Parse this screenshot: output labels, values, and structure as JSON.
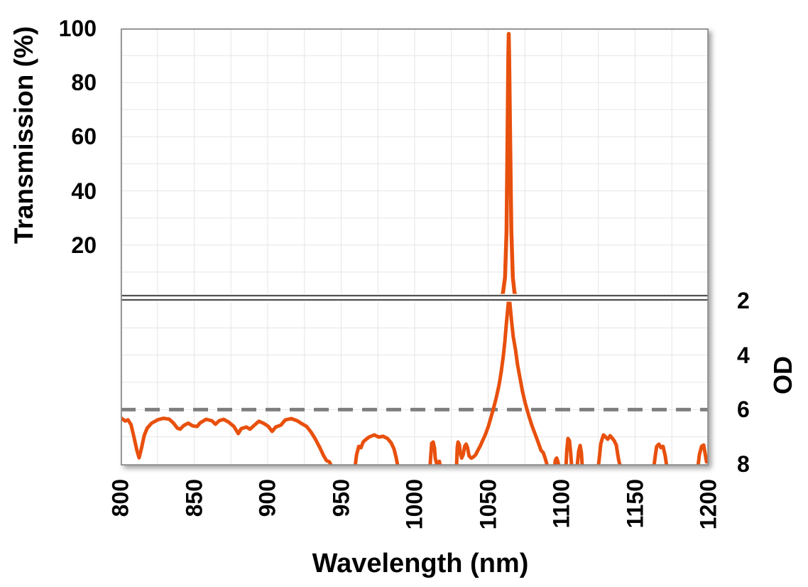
{
  "figure": {
    "kind": "laser-line filter spectrum, stacked transmission / optical-density panels with axis break",
    "background_color": "#FFFFFF",
    "colors": {
      "series_orange": "#E8500D",
      "reference_dash_gray": "#7F7F7F",
      "gridline": "#E5E5E5",
      "plot_border": "#8C8C8C",
      "axis_break_line": "#515151",
      "text": "#000000"
    },
    "axis_break": {
      "between": "Transmission 0% and OD 2",
      "style": "double-line"
    }
  },
  "chart_data": {
    "type": "line",
    "title": "",
    "xlabel": "Wavelength (nm)",
    "x_range": [
      800,
      1200
    ],
    "x_ticks": [
      800,
      850,
      900,
      950,
      1000,
      1050,
      1100,
      1150,
      1200
    ],
    "x_minor_gridline_step_nm": 25,
    "legend": "none",
    "panels": [
      {
        "name": "transmission",
        "ylabel": "Transmission (%)",
        "y_range": [
          0,
          100
        ],
        "y_ticks": [
          20,
          40,
          60,
          80,
          100
        ],
        "y_gridline_step": 10,
        "annotations": {
          "peak_wavelength_nm": 1064,
          "peak_transmission_pct": 98
        },
        "series": [
          {
            "name": "transmission-peak",
            "color": "#E8500D",
            "points": [
              [
                1056,
                0
              ],
              [
                1060,
                2
              ],
              [
                1061.5,
                8
              ],
              [
                1062.5,
                25
              ],
              [
                1063.2,
                60
              ],
              [
                1063.7,
                90
              ],
              [
                1064,
                98
              ],
              [
                1064.3,
                90
              ],
              [
                1065,
                60
              ],
              [
                1065.8,
                25
              ],
              [
                1066.8,
                8
              ],
              [
                1068,
                2
              ],
              [
                1072,
                0
              ]
            ]
          }
        ]
      },
      {
        "name": "optical-density",
        "ylabel": "OD",
        "y_range_top_to_bottom": [
          2,
          8
        ],
        "y_ticks": [
          2,
          4,
          6,
          8
        ],
        "y_gridline_step": 1,
        "reference_line": {
          "od": 6,
          "style": "dashed",
          "color": "#7F7F7F",
          "x_span": [
            800,
            1200
          ]
        },
        "series": [
          {
            "name": "od-blocking",
            "color": "#E8500D",
            "segments": [
              [
                [
                  800,
                  6.3
                ],
                [
                  803,
                  6.42
                ],
                [
                  805,
                  6.38
                ],
                [
                  807,
                  6.55
                ],
                [
                  809,
                  7.0
                ],
                [
                  811,
                  7.5
                ],
                [
                  812.5,
                  7.77
                ],
                [
                  814,
                  7.45
                ],
                [
                  816,
                  6.95
                ],
                [
                  818,
                  6.68
                ],
                [
                  821,
                  6.5
                ],
                [
                  825,
                  6.38
                ],
                [
                  829,
                  6.32
                ],
                [
                  833,
                  6.35
                ],
                [
                  836,
                  6.5
                ],
                [
                  838.5,
                  6.68
                ],
                [
                  840.5,
                  6.72
                ],
                [
                  843,
                  6.58
                ],
                [
                  846,
                  6.5
                ],
                [
                  849,
                  6.6
                ],
                [
                  852,
                  6.62
                ],
                [
                  854,
                  6.49
                ],
                [
                  858,
                  6.36
                ],
                [
                  862,
                  6.41
                ],
                [
                  864.5,
                  6.54
                ],
                [
                  867,
                  6.41
                ],
                [
                  870,
                  6.36
                ],
                [
                  873.5,
                  6.46
                ],
                [
                  877,
                  6.62
                ],
                [
                  880,
                  6.88
                ],
                [
                  882,
                  6.7
                ],
                [
                  885.5,
                  6.64
                ],
                [
                  888,
                  6.72
                ],
                [
                  891,
                  6.57
                ],
                [
                  894,
                  6.43
                ],
                [
                  897.5,
                  6.51
                ],
                [
                  900.5,
                  6.62
                ],
                [
                  903,
                  6.8
                ],
                [
                  905.5,
                  6.64
                ],
                [
                  909,
                  6.57
                ],
                [
                  912,
                  6.38
                ],
                [
                  916,
                  6.33
                ],
                [
                  920,
                  6.41
                ],
                [
                  923,
                  6.51
                ],
                [
                  926.5,
                  6.62
                ],
                [
                  929.5,
                  6.83
                ],
                [
                  932.5,
                  7.09
                ],
                [
                  935.5,
                  7.4
                ],
                [
                  938,
                  7.69
                ],
                [
                  940,
                  7.87
                ],
                [
                  942,
                  7.92
                ],
                [
                  943.5,
                  8.08
                ]
              ],
              [
                [
                  959.5,
                  8.08
                ],
                [
                  960.5,
                  7.66
                ],
                [
                  962,
                  7.35
                ],
                [
                  963.5,
                  7.4
                ],
                [
                  965,
                  7.19
                ],
                [
                  967,
                  7.09
                ],
                [
                  969,
                  7.01
                ],
                [
                  972.5,
                  6.93
                ],
                [
                  975.5,
                  7.01
                ],
                [
                  978.5,
                  6.98
                ],
                [
                  981.5,
                  7.06
                ],
                [
                  984,
                  7.22
                ],
                [
                  986,
                  7.45
                ],
                [
                  987.5,
                  7.78
                ],
                [
                  988.5,
                  8.08
                ]
              ],
              [
                [
                  1010.5,
                  8.08
                ],
                [
                  1011,
                  7.66
                ],
                [
                  1011.6,
                  7.24
                ],
                [
                  1012.6,
                  7.19
                ],
                [
                  1013.5,
                  7.4
                ],
                [
                  1014,
                  7.78
                ],
                [
                  1014.8,
                  7.95
                ],
                [
                  1015.5,
                  8.08
                ]
              ],
              [
                [
                  1016.2,
                  8.08
                ],
                [
                  1016.8,
                  7.9
                ],
                [
                  1017.4,
                  8.08
                ]
              ],
              [
                [
                  1028.5,
                  8.08
                ],
                [
                  1029,
                  7.4
                ],
                [
                  1029.5,
                  7.19
                ],
                [
                  1030.5,
                  7.3
                ],
                [
                  1031,
                  7.6
                ],
                [
                  1032,
                  7.78
                ],
                [
                  1033,
                  7.66
                ],
                [
                  1034,
                  7.35
                ],
                [
                  1035,
                  7.27
                ],
                [
                  1036,
                  7.4
                ],
                [
                  1037,
                  7.7
                ],
                [
                  1038.5,
                  7.78
                ],
                [
                  1040,
                  7.74
                ],
                [
                  1041.5,
                  7.66
                ],
                [
                  1043,
                  7.5
                ],
                [
                  1044.5,
                  7.35
                ],
                [
                  1046,
                  7.17
                ],
                [
                  1048,
                  6.93
                ],
                [
                  1050,
                  6.64
                ],
                [
                  1051.7,
                  6.33
                ],
                [
                  1053.5,
                  5.99
                ],
                [
                  1055.5,
                  5.57
                ],
                [
                  1057.5,
                  5.08
                ],
                [
                  1059,
                  4.58
                ],
                [
                  1060.4,
                  4.0
                ],
                [
                  1061.4,
                  3.49
                ],
                [
                  1062.3,
                  2.9
                ],
                [
                  1063.3,
                  2.34
                ],
                [
                  1063.8,
                  2.05
                ],
                [
                  1064.2,
                  2.02
                ],
                [
                  1064.7,
                  2.05
                ],
                [
                  1065.2,
                  2.34
                ],
                [
                  1066.1,
                  2.83
                ],
                [
                  1067.1,
                  3.33
                ],
                [
                  1068.6,
                  3.8
                ],
                [
                  1070,
                  4.35
                ],
                [
                  1071.5,
                  4.79
                ],
                [
                  1073.4,
                  5.34
                ],
                [
                  1075.3,
                  5.78
                ],
                [
                  1077.7,
                  6.23
                ],
                [
                  1080,
                  6.62
                ],
                [
                  1082.5,
                  6.98
                ],
                [
                  1084.5,
                  7.27
                ],
                [
                  1086,
                  7.5
                ],
                [
                  1087.5,
                  7.58
                ],
                [
                  1088.5,
                  7.74
                ],
                [
                  1089.5,
                  7.92
                ],
                [
                  1090.3,
                  8.08
                ]
              ],
              [
                [
                  1095.2,
                  8.08
                ],
                [
                  1095.8,
                  7.85
                ],
                [
                  1096.6,
                  7.78
                ],
                [
                  1097.4,
                  7.9
                ],
                [
                  1098.1,
                  8.08
                ]
              ],
              [
                [
                  1103,
                  8.08
                ],
                [
                  1103.5,
                  7.53
                ],
                [
                  1104.3,
                  7.06
                ],
                [
                  1105.3,
                  7.14
                ],
                [
                  1106.2,
                  7.6
                ],
                [
                  1106.8,
                  8.08
                ]
              ],
              [
                [
                  1110.6,
                  8.08
                ],
                [
                  1111.6,
                  7.53
                ],
                [
                  1112.6,
                  7.32
                ],
                [
                  1113.5,
                  7.6
                ],
                [
                  1114,
                  8.08
                ]
              ],
              [
                [
                  1125,
                  8.08
                ],
                [
                  1126,
                  7.6
                ],
                [
                  1126.6,
                  7.27
                ],
                [
                  1127.5,
                  7.09
                ],
                [
                  1128.5,
                  6.93
                ],
                [
                  1130,
                  7.01
                ],
                [
                  1131.4,
                  7.09
                ],
                [
                  1133,
                  6.96
                ],
                [
                  1134.3,
                  7.04
                ],
                [
                  1135.7,
                  7.14
                ],
                [
                  1137.2,
                  7.3
                ],
                [
                  1138.2,
                  7.66
                ],
                [
                  1139.1,
                  7.92
                ],
                [
                  1140,
                  8.08
                ]
              ],
              [
                [
                  1162.8,
                  8.08
                ],
                [
                  1163.8,
                  7.66
                ],
                [
                  1164.7,
                  7.35
                ],
                [
                  1166.2,
                  7.27
                ],
                [
                  1167.6,
                  7.4
                ],
                [
                  1169,
                  7.35
                ],
                [
                  1170.5,
                  7.7
                ],
                [
                  1171.5,
                  8.08
                ]
              ],
              [
                [
                  1192.8,
                  8.08
                ],
                [
                  1193.7,
                  7.66
                ],
                [
                  1195.2,
                  7.35
                ],
                [
                  1196.6,
                  7.3
                ],
                [
                  1197.6,
                  7.6
                ],
                [
                  1198.6,
                  7.92
                ],
                [
                  1199.3,
                  7.86
                ],
                [
                  1200,
                  7.9
                ]
              ]
            ]
          }
        ]
      }
    ]
  }
}
